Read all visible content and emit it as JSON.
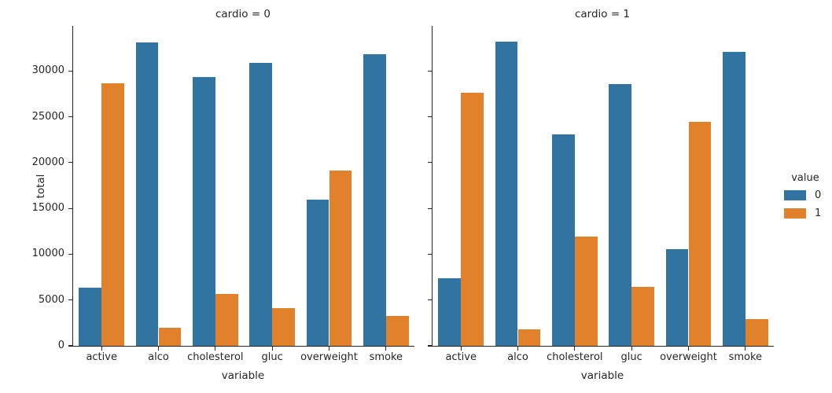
{
  "chart_data": {
    "type": "bar",
    "description": "Faceted count bar chart (seaborn catplot style) of binary risk-factor variables split by cardio status",
    "categories": [
      "active",
      "alco",
      "cholesterol",
      "gluc",
      "overweight",
      "smoke"
    ],
    "xlabel": "variable",
    "ylabel": "total",
    "ylim": [
      0,
      34900
    ],
    "yticks": [
      0,
      5000,
      10000,
      15000,
      20000,
      25000,
      30000
    ],
    "grid": false,
    "facets": [
      {
        "title": "cardio = 0",
        "series": [
          {
            "name": "0",
            "color": "#3274a1",
            "values": [
              6378,
              33080,
              29330,
              30894,
              15915,
              31781
            ]
          },
          {
            "name": "1",
            "color": "#e1812c",
            "values": [
              28643,
              1941,
              5691,
              4127,
              19106,
              3240
            ]
          }
        ]
      },
      {
        "title": "cardio = 1",
        "series": [
          {
            "name": "0",
            "color": "#3274a1",
            "values": [
              7361,
              33156,
              23055,
              28585,
              10539,
              32050
            ]
          },
          {
            "name": "1",
            "color": "#e1812c",
            "values": [
              27618,
              1823,
              11924,
              6394,
              24440,
              2929
            ]
          }
        ]
      }
    ],
    "legend": {
      "title": "value",
      "position": "right",
      "entries": [
        {
          "label": "0",
          "color": "#3274a1"
        },
        {
          "label": "1",
          "color": "#e1812c"
        }
      ]
    }
  }
}
